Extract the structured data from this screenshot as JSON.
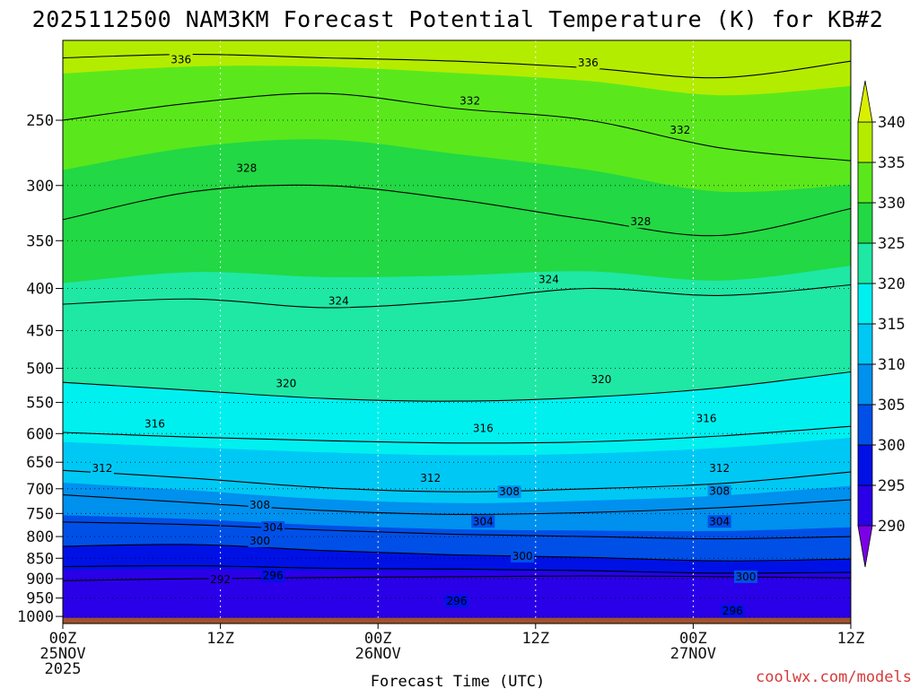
{
  "chart_data": {
    "type": "heatmap",
    "title": "2025112500 NAM3KM Forecast Potential Temperature (K) for KB#2",
    "xlabel": "Forecast Time (UTC)",
    "ylabel": "",
    "x_ticks": [
      {
        "hour": 0,
        "labels": [
          "00Z",
          "25NOV",
          "2025"
        ]
      },
      {
        "hour": 12,
        "labels": [
          "12Z"
        ]
      },
      {
        "hour": 24,
        "labels": [
          "00Z",
          "26NOV"
        ]
      },
      {
        "hour": 36,
        "labels": [
          "12Z"
        ]
      },
      {
        "hour": 48,
        "labels": [
          "00Z",
          "27NOV"
        ]
      },
      {
        "hour": 60,
        "labels": [
          "12Z"
        ]
      }
    ],
    "xlim": [
      0,
      60
    ],
    "y_ticks": [
      250,
      300,
      350,
      400,
      450,
      500,
      550,
      600,
      650,
      700,
      750,
      800,
      850,
      900,
      950,
      1000
    ],
    "ylim_hpa": [
      1020,
      200
    ],
    "y_scale": "log-pressure",
    "colorbar": {
      "levels": [
        290,
        295,
        300,
        305,
        310,
        315,
        320,
        325,
        330,
        335,
        340
      ],
      "colors": [
        "#7b00e6",
        "#2a00e8",
        "#0011e6",
        "#0050e8",
        "#0090ee",
        "#00c8f5",
        "#00f0f0",
        "#1ee8a4",
        "#22d844",
        "#5ae81c",
        "#b4ec00",
        "#d8f000"
      ],
      "extend": "both"
    },
    "contour_interval_K": 4,
    "contours": [
      {
        "level": 292,
        "pressure_hpa": [
          905,
          900,
          897,
          895,
          893,
          895,
          898
        ]
      },
      {
        "level": 296,
        "pressure_hpa": [
          870,
          868,
          874,
          876,
          880,
          886,
          884
        ]
      },
      {
        "level": 300,
        "pressure_hpa": [
          822,
          818,
          832,
          842,
          848,
          856,
          852
        ]
      },
      {
        "level": 304,
        "pressure_hpa": [
          768,
          774,
          786,
          795,
          800,
          805,
          800
        ]
      },
      {
        "level": 308,
        "pressure_hpa": [
          712,
          728,
          744,
          752,
          748,
          738,
          722
        ]
      },
      {
        "level": 312,
        "pressure_hpa": [
          665,
          680,
          698,
          706,
          700,
          690,
          668
        ]
      },
      {
        "level": 316,
        "pressure_hpa": [
          598,
          606,
          612,
          616,
          614,
          604,
          588
        ]
      },
      {
        "level": 320,
        "pressure_hpa": [
          520,
          532,
          544,
          548,
          542,
          528,
          505
        ]
      },
      {
        "level": 324,
        "pressure_hpa": [
          418,
          412,
          422,
          414,
          400,
          408,
          396
        ]
      },
      {
        "level": 328,
        "pressure_hpa": [
          330,
          305,
          300,
          312,
          330,
          345,
          320
        ]
      },
      {
        "level": 332,
        "pressure_hpa": [
          250,
          238,
          232,
          242,
          250,
          270,
          280
        ]
      },
      {
        "level": 336,
        "pressure_hpa": [
          210,
          208,
          210,
          212,
          216,
          222,
          212
        ]
      }
    ],
    "contour_hours": [
      0,
      10,
      20,
      30,
      40,
      50,
      60
    ],
    "contour_labels": [
      {
        "level": 336,
        "hour": 9,
        "pressure_hpa": 211
      },
      {
        "level": 336,
        "hour": 40,
        "pressure_hpa": 213
      },
      {
        "level": 332,
        "hour": 31,
        "pressure_hpa": 237
      },
      {
        "level": 332,
        "hour": 47,
        "pressure_hpa": 257
      },
      {
        "level": 328,
        "hour": 14,
        "pressure_hpa": 286
      },
      {
        "level": 328,
        "hour": 44,
        "pressure_hpa": 332
      },
      {
        "level": 324,
        "hour": 21,
        "pressure_hpa": 414
      },
      {
        "level": 324,
        "hour": 37,
        "pressure_hpa": 390
      },
      {
        "level": 320,
        "hour": 17,
        "pressure_hpa": 522
      },
      {
        "level": 320,
        "hour": 41,
        "pressure_hpa": 516
      },
      {
        "level": 316,
        "hour": 7,
        "pressure_hpa": 584
      },
      {
        "level": 316,
        "hour": 32,
        "pressure_hpa": 591
      },
      {
        "level": 316,
        "hour": 49,
        "pressure_hpa": 575
      },
      {
        "level": 312,
        "hour": 3,
        "pressure_hpa": 661
      },
      {
        "level": 312,
        "hour": 28,
        "pressure_hpa": 680
      },
      {
        "level": 312,
        "hour": 50,
        "pressure_hpa": 661
      },
      {
        "level": 308,
        "hour": 15,
        "pressure_hpa": 733
      },
      {
        "level": 308,
        "hour": 34,
        "pressure_hpa": 706
      },
      {
        "level": 308,
        "hour": 50,
        "pressure_hpa": 705
      },
      {
        "level": 304,
        "hour": 16,
        "pressure_hpa": 780
      },
      {
        "level": 304,
        "hour": 32,
        "pressure_hpa": 767
      },
      {
        "level": 304,
        "hour": 50,
        "pressure_hpa": 767
      },
      {
        "level": 300,
        "hour": 15,
        "pressure_hpa": 810
      },
      {
        "level": 300,
        "hour": 35,
        "pressure_hpa": 845
      },
      {
        "level": 300,
        "hour": 52,
        "pressure_hpa": 895
      },
      {
        "level": 296,
        "hour": 16,
        "pressure_hpa": 892
      },
      {
        "level": 296,
        "hour": 30,
        "pressure_hpa": 958
      },
      {
        "level": 296,
        "hour": 51,
        "pressure_hpa": 985
      },
      {
        "level": 292,
        "hour": 12,
        "pressure_hpa": 902
      }
    ],
    "terrain": {
      "color": "#a0522d",
      "top_pressure_hpa": 1004
    }
  },
  "credit": "coolwx.com/models"
}
